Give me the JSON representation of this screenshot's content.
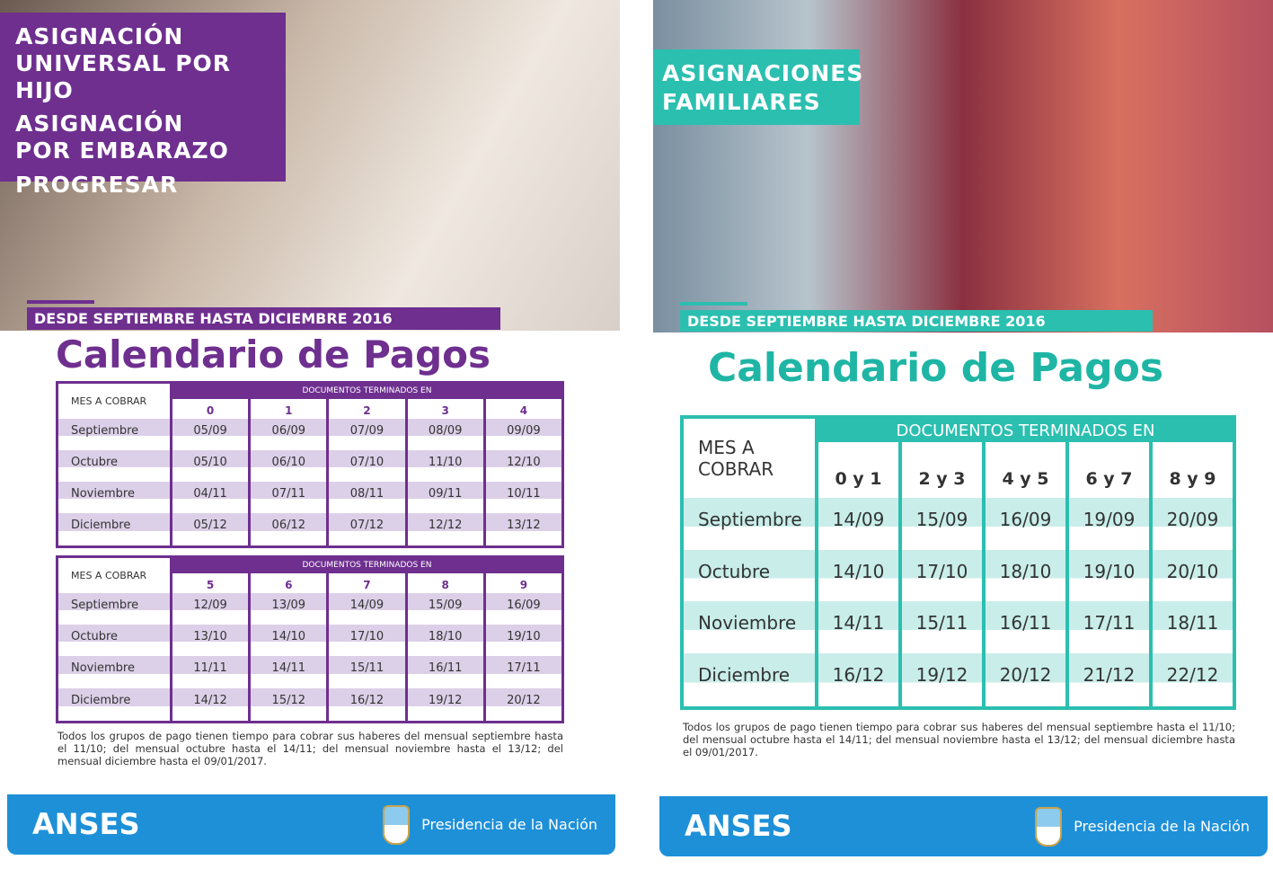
{
  "left": {
    "banner": [
      "ASIGNACIÓN",
      "UNIVERSAL POR HIJO",
      "ASIGNACIÓN",
      "POR EMBARAZO",
      "PROGRESAR"
    ],
    "period": "DESDE SEPTIEMBRE HASTA DICIEMBRE 2016",
    "title": "Calendario de Pagos",
    "tables": [
      {
        "corner": "MES A COBRAR",
        "group_header": "DOCUMENTOS TERMINADOS EN",
        "columns": [
          "0",
          "1",
          "2",
          "3",
          "4"
        ],
        "rows": [
          [
            "Septiembre",
            "05/09",
            "06/09",
            "07/09",
            "08/09",
            "09/09"
          ],
          [
            "Octubre",
            "05/10",
            "06/10",
            "07/10",
            "11/10",
            "12/10"
          ],
          [
            "Noviembre",
            "04/11",
            "07/11",
            "08/11",
            "09/11",
            "10/11"
          ],
          [
            "Diciembre",
            "05/12",
            "06/12",
            "07/12",
            "12/12",
            "13/12"
          ]
        ]
      },
      {
        "corner": "MES A COBRAR",
        "group_header": "DOCUMENTOS TERMINADOS EN",
        "columns": [
          "5",
          "6",
          "7",
          "8",
          "9"
        ],
        "rows": [
          [
            "Septiembre",
            "12/09",
            "13/09",
            "14/09",
            "15/09",
            "16/09"
          ],
          [
            "Octubre",
            "13/10",
            "14/10",
            "17/10",
            "18/10",
            "19/10"
          ],
          [
            "Noviembre",
            "11/11",
            "14/11",
            "15/11",
            "16/11",
            "17/11"
          ],
          [
            "Diciembre",
            "14/12",
            "15/12",
            "16/12",
            "19/12",
            "20/12"
          ]
        ]
      }
    ],
    "note": "Todos los grupos de pago tienen tiempo para cobrar sus haberes del mensual septiembre hasta el 11/10; del mensual octubre hasta el 14/11; del mensual noviembre hasta el 13/12; del mensual diciembre hasta el 09/01/2017.",
    "footer": {
      "brand": "ANSES",
      "gov": "Presidencia de la Nación"
    }
  },
  "right": {
    "banner": [
      "ASIGNACIONES",
      "FAMILIARES"
    ],
    "period": "DESDE SEPTIEMBRE HASTA DICIEMBRE 2016",
    "title": "Calendario de Pagos",
    "tables": [
      {
        "corner": "MES A COBRAR",
        "group_header": "DOCUMENTOS TERMINADOS EN",
        "columns": [
          "0 y 1",
          "2 y 3",
          "4 y 5",
          "6 y 7",
          "8 y 9"
        ],
        "rows": [
          [
            "Septiembre",
            "14/09",
            "15/09",
            "16/09",
            "19/09",
            "20/09"
          ],
          [
            "Octubre",
            "14/10",
            "17/10",
            "18/10",
            "19/10",
            "20/10"
          ],
          [
            "Noviembre",
            "14/11",
            "15/11",
            "16/11",
            "17/11",
            "18/11"
          ],
          [
            "Diciembre",
            "16/12",
            "19/12",
            "20/12",
            "21/12",
            "22/12"
          ]
        ]
      }
    ],
    "note": "Todos los grupos de pago tienen tiempo para cobrar sus haberes del mensual septiembre hasta el 11/10; del mensual octubre hasta el 14/11; del mensual noviembre hasta el 13/12; del mensual diciembre hasta el 09/01/2017.",
    "footer": {
      "brand": "ANSES",
      "gov": "Presidencia de la Nación"
    }
  }
}
